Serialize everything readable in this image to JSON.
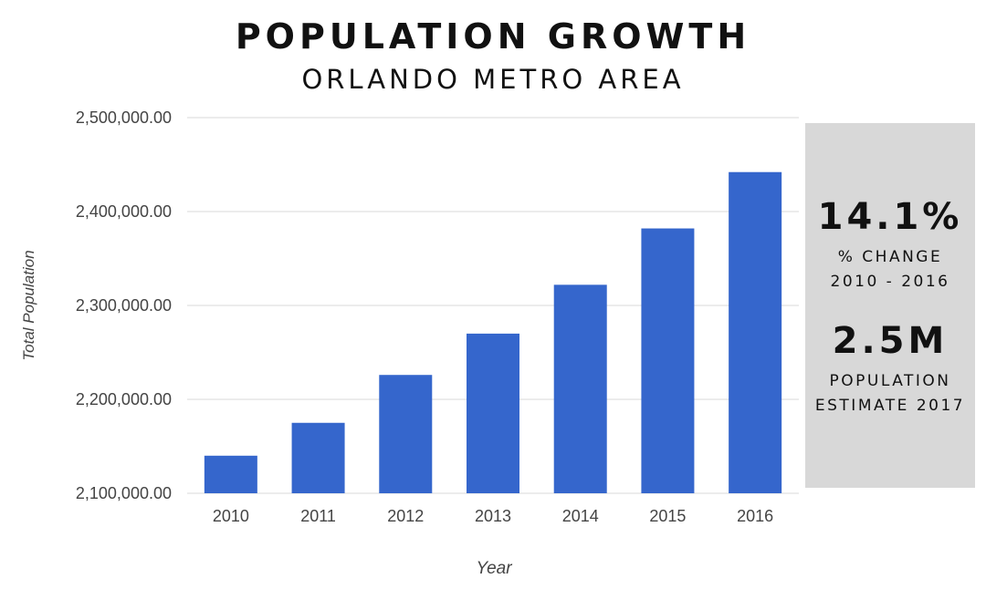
{
  "header": {
    "title": "POPULATION GROWTH",
    "subtitle": "ORLANDO METRO AREA"
  },
  "stats": {
    "change_value": "14.1%",
    "change_label": "% CHANGE",
    "change_period": "2010 - 2016",
    "population_value": "2.5M",
    "population_label": "POPULATION",
    "population_period": "ESTIMATE 2017"
  },
  "colors": {
    "bar": "#3566cc",
    "grid": "#d9d9d9",
    "panel": "#d8d8d8"
  },
  "chart_data": {
    "type": "bar",
    "categories": [
      "2010",
      "2011",
      "2012",
      "2013",
      "2014",
      "2015",
      "2016"
    ],
    "values": [
      2140000,
      2175000,
      2226000,
      2270000,
      2322000,
      2382000,
      2442000
    ],
    "xlabel": "Year",
    "ylabel": "Total Population",
    "ylim": [
      2100000,
      2500000
    ],
    "yticks": [
      2100000,
      2200000,
      2300000,
      2400000,
      2500000
    ],
    "ytick_labels": [
      "2,100,000.00",
      "2,200,000.00",
      "2,300,000.00",
      "2,400,000.00",
      "2,500,000.00"
    ],
    "grid": true,
    "legend": "none"
  }
}
